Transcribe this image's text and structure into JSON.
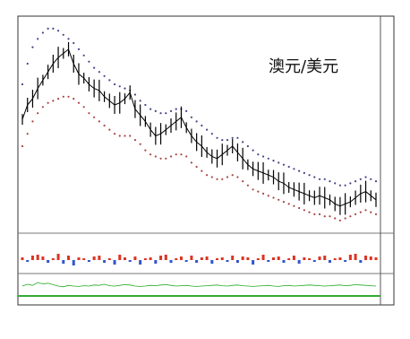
{
  "window": {
    "title": ""
  },
  "chart_data": {
    "type": "line",
    "title": "澳元/美元",
    "xlabel": "",
    "ylabel": "",
    "grid": false,
    "legend": "none",
    "main_price": {
      "x_index": [
        0,
        6,
        12,
        18,
        24,
        30,
        36,
        42,
        48,
        54,
        60,
        66,
        72,
        78,
        84,
        90,
        96,
        102,
        108,
        114,
        120,
        126,
        132,
        138,
        144,
        150,
        156,
        162,
        168,
        174,
        180,
        186,
        192,
        198,
        204,
        210,
        216,
        222,
        228,
        234,
        240,
        246,
        252,
        258,
        264,
        270,
        276,
        282,
        288,
        294,
        300,
        306,
        312,
        318,
        324,
        330,
        336,
        342,
        348,
        354,
        360,
        366,
        372,
        378,
        384,
        390,
        396,
        402,
        408,
        414
      ],
      "values": [
        0.63,
        0.7,
        0.73,
        0.78,
        0.82,
        0.86,
        0.9,
        0.93,
        0.95,
        0.97,
        0.9,
        0.85,
        0.83,
        0.8,
        0.78,
        0.77,
        0.74,
        0.72,
        0.7,
        0.71,
        0.73,
        0.76,
        0.68,
        0.65,
        0.62,
        0.58,
        0.55,
        0.56,
        0.58,
        0.6,
        0.62,
        0.64,
        0.59,
        0.55,
        0.52,
        0.5,
        0.47,
        0.45,
        0.44,
        0.46,
        0.48,
        0.5,
        0.47,
        0.44,
        0.41,
        0.39,
        0.38,
        0.37,
        0.36,
        0.35,
        0.33,
        0.32,
        0.3,
        0.29,
        0.28,
        0.27,
        0.26,
        0.25,
        0.26,
        0.25,
        0.24,
        0.22,
        0.21,
        0.22,
        0.23,
        0.25,
        0.27,
        0.28,
        0.26,
        0.24
      ],
      "color": "#000000"
    },
    "channel_upper": {
      "values": [
        0.8,
        0.9,
        0.98,
        1.02,
        1.05,
        1.07,
        1.07,
        1.06,
        1.04,
        1.02,
        1.0,
        0.97,
        0.94,
        0.91,
        0.88,
        0.86,
        0.84,
        0.82,
        0.8,
        0.79,
        0.78,
        0.77,
        0.75,
        0.72,
        0.7,
        0.68,
        0.67,
        0.66,
        0.66,
        0.67,
        0.68,
        0.68,
        0.67,
        0.64,
        0.62,
        0.6,
        0.58,
        0.56,
        0.54,
        0.53,
        0.53,
        0.54,
        0.54,
        0.52,
        0.5,
        0.48,
        0.46,
        0.45,
        0.44,
        0.43,
        0.42,
        0.41,
        0.4,
        0.39,
        0.38,
        0.37,
        0.36,
        0.35,
        0.34,
        0.34,
        0.33,
        0.32,
        0.31,
        0.31,
        0.32,
        0.33,
        0.34,
        0.35,
        0.34,
        0.33
      ],
      "color": "#444488"
    },
    "channel_lower": {
      "values": [
        0.5,
        0.56,
        0.62,
        0.66,
        0.69,
        0.71,
        0.72,
        0.73,
        0.74,
        0.74,
        0.73,
        0.71,
        0.69,
        0.66,
        0.64,
        0.62,
        0.6,
        0.58,
        0.56,
        0.55,
        0.55,
        0.55,
        0.53,
        0.51,
        0.48,
        0.46,
        0.45,
        0.44,
        0.44,
        0.45,
        0.46,
        0.46,
        0.45,
        0.42,
        0.4,
        0.38,
        0.36,
        0.35,
        0.34,
        0.34,
        0.35,
        0.36,
        0.35,
        0.33,
        0.31,
        0.29,
        0.28,
        0.27,
        0.26,
        0.25,
        0.24,
        0.23,
        0.22,
        0.21,
        0.2,
        0.19,
        0.18,
        0.17,
        0.17,
        0.16,
        0.16,
        0.15,
        0.14,
        0.15,
        0.16,
        0.17,
        0.18,
        0.19,
        0.18,
        0.17
      ],
      "color": "#aa4444"
    },
    "indicator_bars": {
      "values": [
        0.3,
        -0.2,
        0.5,
        0.6,
        0.4,
        -0.3,
        0.2,
        0.7,
        -0.4,
        0.5,
        -0.6,
        0.3,
        0.2,
        -0.2,
        0.4,
        0.5,
        -0.3,
        0.2,
        -0.5,
        0.6,
        0.3,
        -0.2,
        0.4,
        -0.5,
        0.2,
        0.3,
        -0.4,
        0.5,
        0.6,
        -0.3,
        0.2,
        0.4,
        -0.2,
        0.5,
        -0.3,
        0.3,
        0.4,
        -0.4,
        0.2,
        0.3,
        -0.2,
        0.5,
        -0.3,
        0.4,
        0.3,
        -0.5,
        0.2,
        0.6,
        -0.2,
        0.3,
        0.4,
        -0.3,
        0.2,
        0.5,
        -0.4,
        0.3,
        0.2,
        -0.2,
        0.4,
        0.5,
        -0.3,
        0.2,
        0.3,
        -0.2,
        0.6,
        0.7,
        -0.3,
        0.5,
        0.4,
        0.3
      ],
      "color_pos": "#dd3322",
      "color_neg": "#3355cc"
    },
    "volume_line": {
      "values": [
        0.2,
        0.25,
        0.22,
        0.3,
        0.26,
        0.28,
        0.24,
        0.2,
        0.18,
        0.22,
        0.2,
        0.19,
        0.21,
        0.2,
        0.23,
        0.22,
        0.25,
        0.21,
        0.2,
        0.22,
        0.24,
        0.23,
        0.2,
        0.19,
        0.2,
        0.22,
        0.21,
        0.23,
        0.24,
        0.22,
        0.2,
        0.21,
        0.22,
        0.2,
        0.19,
        0.2,
        0.21,
        0.22,
        0.23,
        0.21,
        0.2,
        0.22,
        0.23,
        0.21,
        0.2,
        0.19,
        0.2,
        0.21,
        0.22,
        0.2,
        0.19,
        0.21,
        0.22,
        0.2,
        0.21,
        0.22,
        0.23,
        0.22,
        0.21,
        0.2,
        0.21,
        0.22,
        0.23,
        0.21,
        0.22,
        0.24,
        0.23,
        0.22,
        0.21,
        0.2
      ],
      "color": "#22aa22"
    }
  }
}
